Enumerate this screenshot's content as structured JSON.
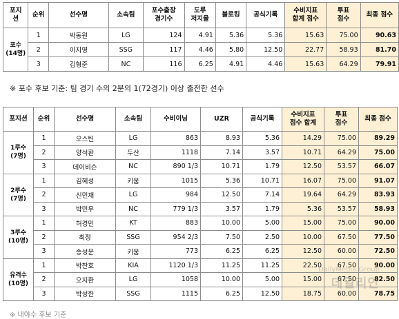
{
  "catcher_table": {
    "headers": [
      "포지\n션",
      "순위",
      "선수명",
      "소속팀",
      "포수출장\n경기수",
      "도루\n저지율",
      "블로킹",
      "공식기록",
      "수비지표\n합계 점수",
      "투표\n점수",
      "최종 점수"
    ],
    "position_label": "포수\n(14명)",
    "rows": [
      [
        "1",
        "박동원",
        "LG",
        "124",
        "4.91",
        "5.36",
        "5.36",
        "15.63",
        "75.00",
        "90.63"
      ],
      [
        "2",
        "이지영",
        "SSG",
        "117",
        "4.46",
        "5.80",
        "12.50",
        "22.77",
        "58.93",
        "81.70"
      ],
      [
        "3",
        "김형준",
        "NC",
        "116",
        "6.25",
        "4.91",
        "4.46",
        "15.63",
        "64.29",
        "79.91"
      ]
    ]
  },
  "note": "※ 포수 후보 기준: 팀 경기 수의 2분의 1(72경기) 이상 출전한 선수",
  "fielder_table": {
    "headers": [
      "포지션",
      "순위",
      "선수명",
      "소속팀",
      "수비이닝",
      "UZR",
      "공식기록",
      "수비지표\n점수 합계",
      "투표\n점수",
      "최종 점수"
    ],
    "groups": [
      {
        "position": "1루수\n(7명)",
        "rows": [
          [
            "1",
            "오스틴",
            "LG",
            "863",
            "8.93",
            "5.36",
            "14.29",
            "75.00",
            "89.29"
          ],
          [
            "2",
            "양석환",
            "두산",
            "1118",
            "7.14",
            "3.57",
            "10.71",
            "64.29",
            "75.00"
          ],
          [
            "3",
            "데이비슨",
            "NC",
            "890 1/3",
            "10.71",
            "1.79",
            "12.50",
            "53.57",
            "66.07"
          ]
        ]
      },
      {
        "position": "2루수\n(7명)",
        "rows": [
          [
            "1",
            "김혜성",
            "키움",
            "1015",
            "5.36",
            "10.71",
            "16.07",
            "75.00",
            "91.07"
          ],
          [
            "2",
            "신민재",
            "LG",
            "984",
            "12.50",
            "7.14",
            "19.64",
            "64.29",
            "83.93"
          ],
          [
            "3",
            "박민우",
            "NC",
            "779 1/3",
            "3.57",
            "1.79",
            "5.36",
            "53.57",
            "58.93"
          ]
        ]
      },
      {
        "position": "3루수\n(10명)",
        "rows": [
          [
            "1",
            "허경민",
            "KT",
            "883",
            "10.00",
            "5.00",
            "15.00",
            "75.00",
            "90.00"
          ],
          [
            "2",
            "최정",
            "SSG",
            "954 2/3",
            "7.50",
            "2.50",
            "10.00",
            "67.50",
            "77.50"
          ],
          [
            "3",
            "송성문",
            "키움",
            "773",
            "6.25",
            "6.25",
            "12.50",
            "60.00",
            "72.50"
          ]
        ]
      },
      {
        "position": "유격수\n(10명)",
        "rows": [
          [
            "1",
            "박찬호",
            "KIA",
            "1120 1/3",
            "11.25",
            "11.25",
            "22.50",
            "67.50",
            "90.00"
          ],
          [
            "2",
            "오지환",
            "LG",
            "1058",
            "10.00",
            "5.00",
            "15.00",
            "67.50",
            "82.50"
          ],
          [
            "3",
            "박성한",
            "SSG",
            "1115",
            "6.25",
            "12.50",
            "18.75",
            "60.00",
            "78.75"
          ]
        ]
      }
    ]
  },
  "watermark": {
    "en": "DailyMedia Group",
    "ko": "데일리안"
  },
  "cut_text": "※ 내야수 후보 기준"
}
